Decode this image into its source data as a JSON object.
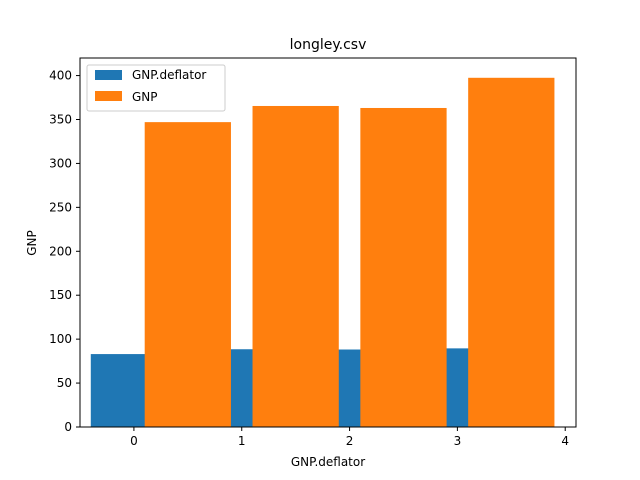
{
  "chart_data": {
    "type": "bar",
    "title": "longley.csv",
    "xlabel": "GNP.deflator",
    "ylabel": "GNP",
    "xlim": [
      -0.5,
      4.1
    ],
    "ylim": [
      0,
      420
    ],
    "xticks": [
      0,
      1,
      2,
      3,
      4
    ],
    "yticks": [
      0,
      50,
      100,
      150,
      200,
      250,
      300,
      350,
      400
    ],
    "grid": false,
    "legend_position": "top-left",
    "series": [
      {
        "name": "GNP.deflator",
        "color": "#1f77b4",
        "x": [
          0,
          1,
          2,
          3
        ],
        "values": [
          83.0,
          88.5,
          88.2,
          89.5
        ],
        "width": 0.8
      },
      {
        "name": "GNP",
        "color": "#ff7f0e",
        "x": [
          0.5,
          1.5,
          2.5,
          3.5
        ],
        "values": [
          346.999,
          365.385,
          363.112,
          397.469
        ],
        "width": 0.8
      }
    ]
  }
}
